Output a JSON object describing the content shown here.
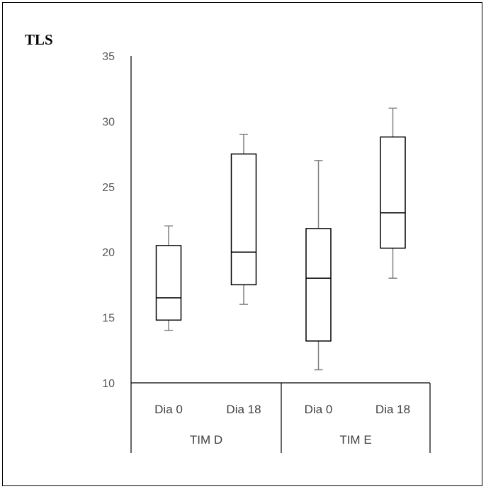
{
  "chart_data": {
    "type": "boxplot",
    "title": "TLS",
    "xlabel": "",
    "ylabel": "",
    "ylim": [
      10,
      35
    ],
    "y_ticks": [
      10,
      15,
      20,
      25,
      30,
      35
    ],
    "grid": false,
    "groups": [
      {
        "label": "TIM D",
        "categories": [
          "Dia 0",
          "Dia 18"
        ]
      },
      {
        "label": "TIM E",
        "categories": [
          "Dia 0",
          "Dia 18"
        ]
      }
    ],
    "boxes": [
      {
        "group": "TIM D",
        "category": "Dia 0",
        "min": 14,
        "q1": 14.8,
        "median": 16.5,
        "q3": 20.5,
        "max": 22
      },
      {
        "group": "TIM D",
        "category": "Dia 18",
        "min": 16,
        "q1": 17.5,
        "median": 20,
        "q3": 27.5,
        "max": 29
      },
      {
        "group": "TIM E",
        "category": "Dia 0",
        "min": 11,
        "q1": 13.2,
        "median": 18,
        "q3": 21.8,
        "max": 27
      },
      {
        "group": "TIM E",
        "category": "Dia 18",
        "min": 18,
        "q1": 20.3,
        "median": 23,
        "q3": 28.8,
        "max": 31
      }
    ],
    "colors": {
      "box": "#000000",
      "whisker": "#808080",
      "axis": "#000000"
    }
  }
}
